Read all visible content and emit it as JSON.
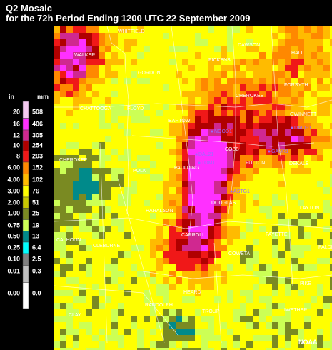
{
  "header": {
    "title": "Q2 Mosaic",
    "subtitle": "for the 72h Period Ending 1200 UTC 22 September 2009"
  },
  "legend": {
    "unit_in": "in",
    "unit_mm": "mm",
    "items": [
      {
        "in": "20",
        "mm": "508",
        "color": "#f4c8f0"
      },
      {
        "in": "16",
        "mm": "406",
        "color": "#ff30ff"
      },
      {
        "in": "12",
        "mm": "305",
        "color": "#d02890"
      },
      {
        "in": "10",
        "mm": "254",
        "color": "#b00000"
      },
      {
        "in": "8",
        "mm": "203",
        "color": "#f01818"
      },
      {
        "in": "6.00",
        "mm": "152",
        "color": "#ff8800"
      },
      {
        "in": "4.00",
        "mm": "102",
        "color": "#ffbb00"
      },
      {
        "in": "3.00",
        "mm": "76",
        "color": "#ffff00"
      },
      {
        "in": "2.00",
        "mm": "51",
        "color": "#c8c800"
      },
      {
        "in": "1.00",
        "mm": "25",
        "color": "#7a8a22"
      },
      {
        "in": "0.75",
        "mm": "19",
        "color": "#ccff55"
      },
      {
        "in": "0.50",
        "mm": "13",
        "color": "#008a8a"
      },
      {
        "in": "0.25",
        "mm": "6.4",
        "color": "#00ffff"
      },
      {
        "in": "0.10",
        "mm": "2.5",
        "color": "#808080"
      },
      {
        "in": "0.01",
        "mm": "0.3",
        "color": "#c0c0c0"
      },
      {
        "in": "0.00",
        "mm": "0.0",
        "color": "#ffffff"
      }
    ]
  },
  "counties": [
    "WHITFIELD",
    "WALKER",
    "GORDON",
    "PICKENS",
    "DAWSON",
    "HALL",
    "CHATTOOGA",
    "FLOYD",
    "CHEROKEE",
    "FORSYTH",
    "BARTOW",
    "GWINNETT",
    "CHEROKEE",
    "POLK",
    "PAULDING",
    "COBB",
    "FULTON",
    "DEKALB",
    "DOUGLAS",
    "HARALSON",
    "CARROLL",
    "LAYTON",
    "CALHOUN",
    "CLEBURNE",
    "FAYETTE",
    "PALDI",
    "COWETA",
    "PIKE",
    "HEARD",
    "RANDOLPH",
    "TROUP",
    "IWETHER",
    "CLAY"
  ],
  "stations": [
    "NOOD1",
    "DAL21",
    "TOM1",
    "GADR1",
    "DACG1",
    "ASTG1"
  ],
  "credit": "NOAA"
}
